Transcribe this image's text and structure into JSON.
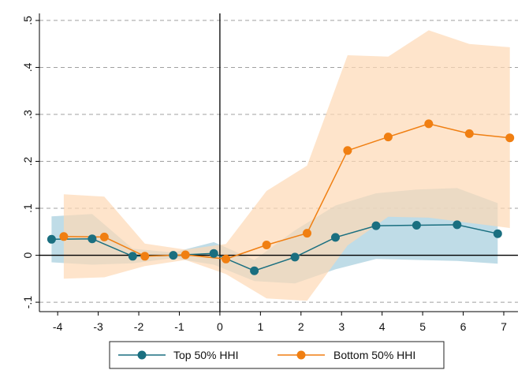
{
  "chart_data": {
    "type": "line",
    "title": "",
    "xlabel": "",
    "ylabel": "",
    "xlim": [
      -4.45,
      7.35
    ],
    "ylim": [
      -0.12,
      0.515
    ],
    "x_ticks": [
      -4,
      -3,
      -2,
      -1,
      0,
      1,
      2,
      3,
      4,
      5,
      6,
      7
    ],
    "x_tick_labels": [
      "-4",
      "-3",
      "-2",
      "-1",
      "0",
      "1",
      "2",
      "3",
      "4",
      "5",
      "6",
      "7"
    ],
    "y_ticks": [
      -0.1,
      0,
      0.1,
      0.2,
      0.3,
      0.4,
      0.5
    ],
    "y_tick_labels": [
      "-.1",
      "0",
      ".1",
      ".2",
      ".3",
      ".4",
      ".5"
    ],
    "grid": "horizontal dashed",
    "reference_lines": {
      "x": 0,
      "y": 0
    },
    "legend_position": "bottom",
    "series": [
      {
        "name": "Top 50% HHI",
        "color": "#1a6f80",
        "band_color": "#a9d0df",
        "x": [
          -4.15,
          -3.15,
          -2.15,
          -1.15,
          -0.15,
          0.85,
          1.85,
          2.85,
          3.85,
          4.85,
          5.85,
          6.85
        ],
        "y": [
          0.034,
          0.035,
          -0.002,
          0.0,
          0.004,
          -0.033,
          -0.004,
          0.038,
          0.063,
          0.064,
          0.065,
          0.046
        ],
        "ci_low": [
          -0.015,
          -0.02,
          -0.017,
          -0.006,
          -0.02,
          -0.055,
          -0.06,
          -0.03,
          -0.008,
          -0.01,
          -0.012,
          -0.018
        ],
        "ci_high": [
          0.083,
          0.088,
          0.014,
          0.006,
          0.028,
          -0.01,
          0.053,
          0.106,
          0.132,
          0.14,
          0.143,
          0.111
        ]
      },
      {
        "name": "Bottom 50% HHI",
        "color": "#f07f12",
        "band_color": "#fdd9b5",
        "x": [
          -3.85,
          -2.85,
          -1.85,
          -0.85,
          0.15,
          1.15,
          2.15,
          3.15,
          4.15,
          5.15,
          6.15,
          7.15
        ],
        "y": [
          0.04,
          0.039,
          -0.002,
          0.001,
          -0.008,
          0.022,
          0.047,
          0.223,
          0.252,
          0.28,
          0.259,
          0.25
        ],
        "ci_low": [
          -0.05,
          -0.047,
          -0.023,
          -0.01,
          -0.04,
          -0.092,
          -0.097,
          0.021,
          0.082,
          0.08,
          0.069,
          0.058
        ],
        "ci_high": [
          0.13,
          0.125,
          0.025,
          0.012,
          0.024,
          0.137,
          0.191,
          0.426,
          0.423,
          0.479,
          0.45,
          0.443
        ]
      }
    ]
  },
  "colors": {
    "grid": "#a0a0a0",
    "axis": "#000000",
    "background": "#ffffff"
  }
}
